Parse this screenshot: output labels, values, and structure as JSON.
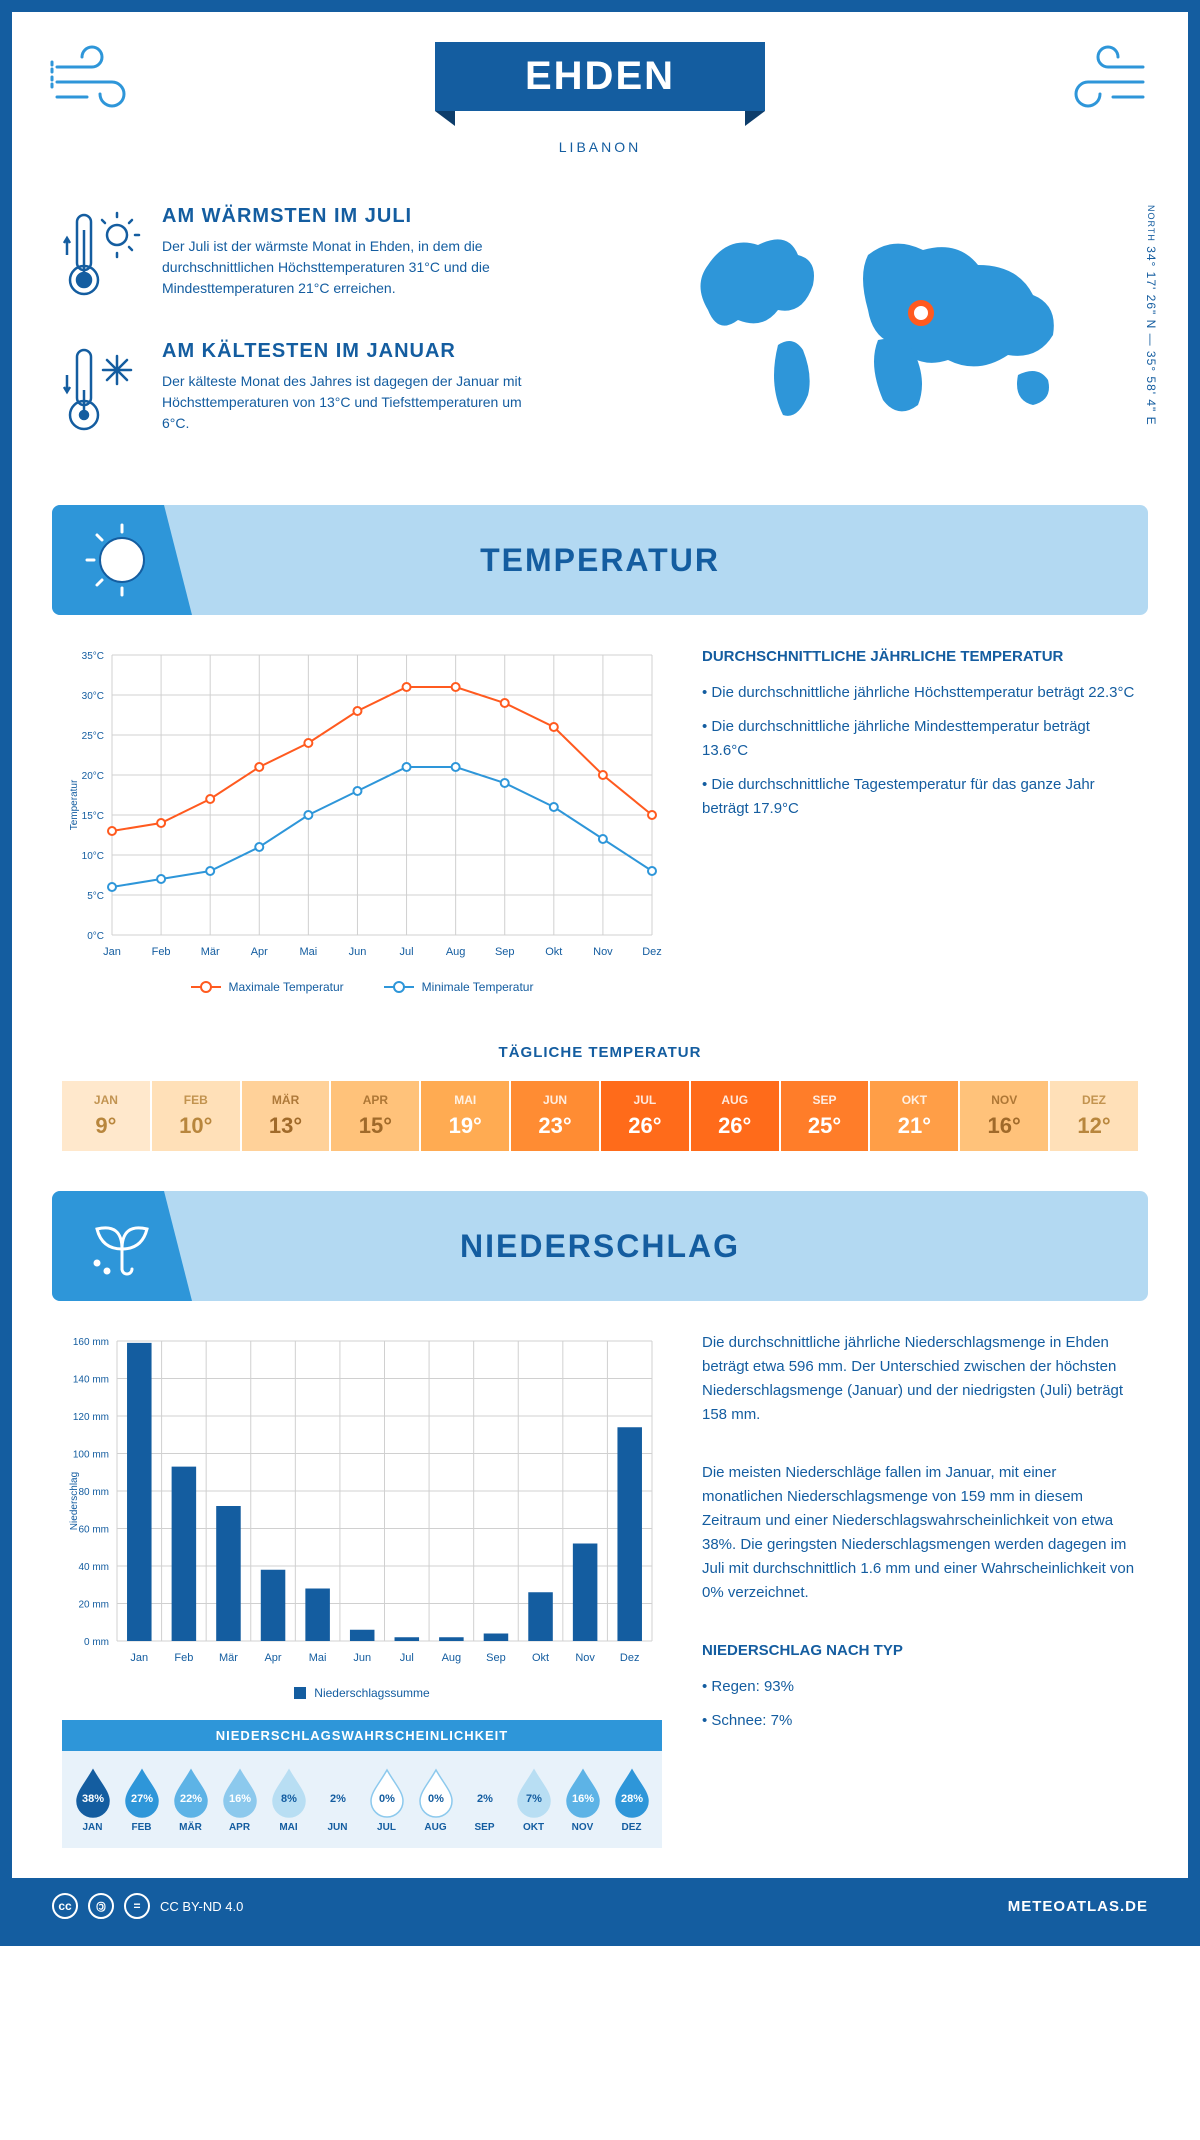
{
  "header": {
    "title": "EHDEN",
    "subtitle": "LIBANON"
  },
  "coords": {
    "text": "34° 17' 26\" N — 35° 58' 4\" E",
    "north": "NORTH"
  },
  "warmest": {
    "heading": "AM WÄRMSTEN IM JULI",
    "body": "Der Juli ist der wärmste Monat in Ehden, in dem die durchschnittlichen Höchsttemperaturen 31°C und die Mindesttemperaturen 21°C erreichen."
  },
  "coldest": {
    "heading": "AM KÄLTESTEN IM JANUAR",
    "body": "Der kälteste Monat des Jahres ist dagegen der Januar mit Höchsttemperaturen von 13°C und Tiefsttemperaturen um 6°C."
  },
  "temp_section": {
    "title": "TEMPERATUR"
  },
  "temp_chart": {
    "months": [
      "Jan",
      "Feb",
      "Mär",
      "Apr",
      "Mai",
      "Jun",
      "Jul",
      "Aug",
      "Sep",
      "Okt",
      "Nov",
      "Dez"
    ],
    "max": [
      13,
      14,
      17,
      21,
      24,
      28,
      31,
      31,
      29,
      26,
      20,
      15
    ],
    "min": [
      6,
      7,
      8,
      11,
      15,
      18,
      21,
      21,
      19,
      16,
      12,
      8
    ],
    "ylabel": "Temperatur",
    "ylim": [
      0,
      35
    ],
    "ytick_step": 5,
    "max_color": "#ff5a1f",
    "min_color": "#2e96d9",
    "grid_color": "#d0d0d0",
    "line_width": 2,
    "legend_max": "Maximale Temperatur",
    "legend_min": "Minimale Temperatur"
  },
  "temp_facts": {
    "heading": "DURCHSCHNITTLICHE JÄHRLICHE TEMPERATUR",
    "b1": "• Die durchschnittliche jährliche Höchsttemperatur beträgt 22.3°C",
    "b2": "• Die durchschnittliche jährliche Mindesttemperatur beträgt 13.6°C",
    "b3": "• Die durchschnittliche Tagestemperatur für das ganze Jahr beträgt 17.9°C"
  },
  "daily_temp": {
    "heading": "TÄGLICHE TEMPERATUR",
    "months": [
      "JAN",
      "FEB",
      "MÄR",
      "APR",
      "MAI",
      "JUN",
      "JUL",
      "AUG",
      "SEP",
      "OKT",
      "NOV",
      "DEZ"
    ],
    "values": [
      "9°",
      "10°",
      "13°",
      "15°",
      "19°",
      "23°",
      "26°",
      "26°",
      "25°",
      "21°",
      "16°",
      "12°"
    ],
    "bg_colors": [
      "#ffe8cc",
      "#ffe0b8",
      "#ffd199",
      "#ffc27a",
      "#ffab52",
      "#ff8c33",
      "#ff6b1a",
      "#ff6b1a",
      "#ff7d29",
      "#ff9e47",
      "#ffc27a",
      "#ffe0b8"
    ],
    "text_colors": [
      "#b8863d",
      "#b8863d",
      "#a06a2a",
      "#a06a2a",
      "#ffffff",
      "#ffffff",
      "#ffffff",
      "#ffffff",
      "#ffffff",
      "#ffffff",
      "#a06a2a",
      "#b8863d"
    ]
  },
  "precip_section": {
    "title": "NIEDERSCHLAG"
  },
  "precip_chart": {
    "months": [
      "Jan",
      "Feb",
      "Mär",
      "Apr",
      "Mai",
      "Jun",
      "Jul",
      "Aug",
      "Sep",
      "Okt",
      "Nov",
      "Dez"
    ],
    "values": [
      159,
      93,
      72,
      38,
      28,
      6,
      2,
      2,
      4,
      26,
      52,
      114
    ],
    "ylabel": "Niederschlag",
    "ylim": [
      0,
      160
    ],
    "ytick_step": 20,
    "bar_color": "#145da0",
    "grid_color": "#d0d0d0",
    "legend": "Niederschlagssumme"
  },
  "precip_text": {
    "p1": "Die durchschnittliche jährliche Niederschlagsmenge in Ehden beträgt etwa 596 mm. Der Unterschied zwischen der höchsten Niederschlagsmenge (Januar) und der niedrigsten (Juli) beträgt 158 mm.",
    "p2": "Die meisten Niederschläge fallen im Januar, mit einer monatlichen Niederschlagsmenge von 159 mm in diesem Zeitraum und einer Niederschlagswahrscheinlichkeit von etwa 38%. Die geringsten Niederschlagsmengen werden dagegen im Juli mit durchschnittlich 1.6 mm und einer Wahrscheinlichkeit von 0% verzeichnet.",
    "type_heading": "NIEDERSCHLAG NACH TYP",
    "t1": "• Regen: 93%",
    "t2": "• Schnee: 7%"
  },
  "prob": {
    "heading": "NIEDERSCHLAGSWAHRSCHEINLICHKEIT",
    "months": [
      "JAN",
      "FEB",
      "MÄR",
      "APR",
      "MAI",
      "JUN",
      "JUL",
      "AUG",
      "SEP",
      "OKT",
      "NOV",
      "DEZ"
    ],
    "values": [
      "38%",
      "27%",
      "22%",
      "16%",
      "8%",
      "2%",
      "0%",
      "0%",
      "2%",
      "7%",
      "16%",
      "28%"
    ],
    "fills": [
      "#145da0",
      "#2e96d9",
      "#5db3e6",
      "#8cc9ed",
      "#b8def3",
      "#e8f2fa",
      "#ffffff",
      "#ffffff",
      "#e8f2fa",
      "#b8def3",
      "#5db3e6",
      "#2e96d9"
    ],
    "text_colors": [
      "#fff",
      "#fff",
      "#fff",
      "#fff",
      "#145da0",
      "#145da0",
      "#145da0",
      "#145da0",
      "#145da0",
      "#145da0",
      "#fff",
      "#fff"
    ]
  },
  "footer": {
    "license": "CC BY-ND 4.0",
    "site": "METEOATLAS.DE"
  },
  "colors": {
    "primary": "#145da0",
    "accent": "#2e96d9",
    "light": "#b3d9f2"
  }
}
